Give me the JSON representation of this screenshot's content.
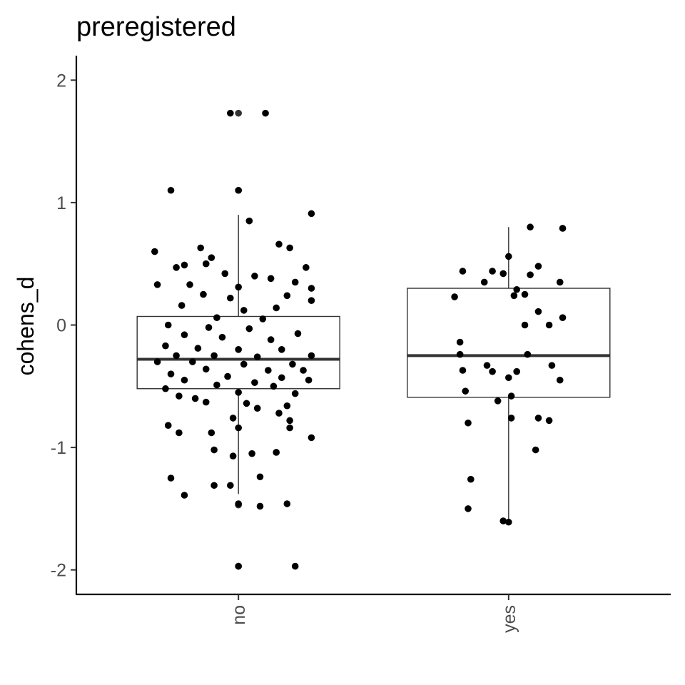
{
  "chart_data": {
    "type": "boxplot",
    "title": "preregistered",
    "xlabel": "",
    "ylabel": "cohens_d",
    "categories": [
      "no",
      "yes"
    ],
    "ylim": [
      -2.2,
      2.2
    ],
    "yticks": [
      -2,
      -1,
      0,
      1,
      2
    ],
    "yticklabels": [
      "-2",
      "-1",
      "0",
      "1",
      "2"
    ],
    "grid": false,
    "legend": "none",
    "colors": {
      "box_fill": "#ffffff",
      "box_stroke": "#333333",
      "median": "#333333",
      "points": "#000000",
      "axis": "#000000"
    },
    "boxes": [
      {
        "category": "no",
        "lower_whisker": -1.38,
        "q1": -0.52,
        "median": -0.28,
        "q3": 0.07,
        "upper_whisker": 0.9
      },
      {
        "category": "yes",
        "lower_whisker": -1.6,
        "q1": -0.59,
        "median": -0.25,
        "q3": 0.3,
        "upper_whisker": 0.8
      }
    ],
    "outliers": [
      {
        "category": "no",
        "y": 1.73
      },
      {
        "category": "no",
        "y": 1.1
      },
      {
        "category": "no",
        "y": -1.47
      },
      {
        "category": "no",
        "y": -1.97
      }
    ],
    "points": [
      {
        "category": "no",
        "x_offset": -0.03,
        "y": 1.73
      },
      {
        "category": "no",
        "x_offset": 0.1,
        "y": 1.73
      },
      {
        "category": "no",
        "x_offset": -0.25,
        "y": 1.1
      },
      {
        "category": "no",
        "x_offset": 0.0,
        "y": 1.1
      },
      {
        "category": "no",
        "x_offset": 0.04,
        "y": 0.85
      },
      {
        "category": "no",
        "x_offset": 0.27,
        "y": 0.91
      },
      {
        "category": "no",
        "x_offset": -0.31,
        "y": 0.6
      },
      {
        "category": "no",
        "x_offset": -0.14,
        "y": 0.63
      },
      {
        "category": "no",
        "x_offset": -0.1,
        "y": 0.55
      },
      {
        "category": "no",
        "x_offset": -0.12,
        "y": 0.5
      },
      {
        "category": "no",
        "x_offset": 0.15,
        "y": 0.66
      },
      {
        "category": "no",
        "x_offset": 0.19,
        "y": 0.63
      },
      {
        "category": "no",
        "x_offset": -0.2,
        "y": 0.49
      },
      {
        "category": "no",
        "x_offset": -0.23,
        "y": 0.47
      },
      {
        "category": "no",
        "x_offset": 0.25,
        "y": 0.47
      },
      {
        "category": "no",
        "x_offset": -0.05,
        "y": 0.42
      },
      {
        "category": "no",
        "x_offset": 0.06,
        "y": 0.4
      },
      {
        "category": "no",
        "x_offset": 0.12,
        "y": 0.38
      },
      {
        "category": "no",
        "x_offset": -0.3,
        "y": 0.33
      },
      {
        "category": "no",
        "x_offset": -0.18,
        "y": 0.33
      },
      {
        "category": "no",
        "x_offset": 0.0,
        "y": 0.31
      },
      {
        "category": "no",
        "x_offset": 0.21,
        "y": 0.35
      },
      {
        "category": "no",
        "x_offset": 0.27,
        "y": 0.3
      },
      {
        "category": "no",
        "x_offset": -0.13,
        "y": 0.25
      },
      {
        "category": "no",
        "x_offset": -0.03,
        "y": 0.22
      },
      {
        "category": "no",
        "x_offset": 0.18,
        "y": 0.24
      },
      {
        "category": "no",
        "x_offset": -0.21,
        "y": 0.16
      },
      {
        "category": "no",
        "x_offset": 0.02,
        "y": 0.12
      },
      {
        "category": "no",
        "x_offset": 0.14,
        "y": 0.14
      },
      {
        "category": "no",
        "x_offset": 0.27,
        "y": 0.2
      },
      {
        "category": "no",
        "x_offset": -0.08,
        "y": 0.06
      },
      {
        "category": "no",
        "x_offset": 0.09,
        "y": 0.05
      },
      {
        "category": "no",
        "x_offset": -0.26,
        "y": 0.0
      },
      {
        "category": "no",
        "x_offset": -0.11,
        "y": -0.02
      },
      {
        "category": "no",
        "x_offset": 0.04,
        "y": -0.03
      },
      {
        "category": "no",
        "x_offset": 0.22,
        "y": -0.07
      },
      {
        "category": "no",
        "x_offset": -0.2,
        "y": -0.08
      },
      {
        "category": "no",
        "x_offset": -0.06,
        "y": -0.1
      },
      {
        "category": "no",
        "x_offset": 0.12,
        "y": -0.12
      },
      {
        "category": "no",
        "x_offset": -0.27,
        "y": -0.17
      },
      {
        "category": "no",
        "x_offset": -0.15,
        "y": -0.19
      },
      {
        "category": "no",
        "x_offset": 0.0,
        "y": -0.2
      },
      {
        "category": "no",
        "x_offset": 0.16,
        "y": -0.2
      },
      {
        "category": "no",
        "x_offset": 0.27,
        "y": -0.25
      },
      {
        "category": "no",
        "x_offset": -0.23,
        "y": -0.25
      },
      {
        "category": "no",
        "x_offset": -0.09,
        "y": -0.25
      },
      {
        "category": "no",
        "x_offset": 0.07,
        "y": -0.26
      },
      {
        "category": "no",
        "x_offset": -0.3,
        "y": -0.3
      },
      {
        "category": "no",
        "x_offset": -0.17,
        "y": -0.3
      },
      {
        "category": "no",
        "x_offset": 0.02,
        "y": -0.32
      },
      {
        "category": "no",
        "x_offset": 0.2,
        "y": -0.32
      },
      {
        "category": "no",
        "x_offset": -0.12,
        "y": -0.36
      },
      {
        "category": "no",
        "x_offset": 0.11,
        "y": -0.37
      },
      {
        "category": "no",
        "x_offset": 0.24,
        "y": -0.37
      },
      {
        "category": "no",
        "x_offset": -0.25,
        "y": -0.4
      },
      {
        "category": "no",
        "x_offset": -0.04,
        "y": -0.42
      },
      {
        "category": "no",
        "x_offset": 0.16,
        "y": -0.43
      },
      {
        "category": "no",
        "x_offset": -0.2,
        "y": -0.45
      },
      {
        "category": "no",
        "x_offset": 0.06,
        "y": -0.47
      },
      {
        "category": "no",
        "x_offset": 0.26,
        "y": -0.45
      },
      {
        "category": "no",
        "x_offset": -0.08,
        "y": -0.49
      },
      {
        "category": "no",
        "x_offset": 0.13,
        "y": -0.5
      },
      {
        "category": "no",
        "x_offset": -0.27,
        "y": -0.52
      },
      {
        "category": "no",
        "x_offset": 0.0,
        "y": -0.55
      },
      {
        "category": "no",
        "x_offset": 0.21,
        "y": -0.56
      },
      {
        "category": "no",
        "x_offset": -0.22,
        "y": -0.58
      },
      {
        "category": "no",
        "x_offset": -0.16,
        "y": -0.6
      },
      {
        "category": "no",
        "x_offset": 0.03,
        "y": -0.64
      },
      {
        "category": "no",
        "x_offset": 0.18,
        "y": -0.66
      },
      {
        "category": "no",
        "x_offset": -0.12,
        "y": -0.63
      },
      {
        "category": "no",
        "x_offset": 0.07,
        "y": -0.68
      },
      {
        "category": "no",
        "x_offset": 0.15,
        "y": -0.72
      },
      {
        "category": "no",
        "x_offset": -0.02,
        "y": -0.76
      },
      {
        "category": "no",
        "x_offset": 0.19,
        "y": -0.78
      },
      {
        "category": "no",
        "x_offset": -0.26,
        "y": -0.82
      },
      {
        "category": "no",
        "x_offset": 0.0,
        "y": -0.84
      },
      {
        "category": "no",
        "x_offset": 0.19,
        "y": -0.84
      },
      {
        "category": "no",
        "x_offset": -0.22,
        "y": -0.88
      },
      {
        "category": "no",
        "x_offset": -0.1,
        "y": -0.88
      },
      {
        "category": "no",
        "x_offset": 0.27,
        "y": -0.92
      },
      {
        "category": "no",
        "x_offset": -0.09,
        "y": -1.02
      },
      {
        "category": "no",
        "x_offset": 0.05,
        "y": -1.05
      },
      {
        "category": "no",
        "x_offset": 0.14,
        "y": -1.04
      },
      {
        "category": "no",
        "x_offset": -0.02,
        "y": -1.07
      },
      {
        "category": "no",
        "x_offset": -0.25,
        "y": -1.25
      },
      {
        "category": "no",
        "x_offset": 0.08,
        "y": -1.24
      },
      {
        "category": "no",
        "x_offset": -0.09,
        "y": -1.31
      },
      {
        "category": "no",
        "x_offset": -0.03,
        "y": -1.31
      },
      {
        "category": "no",
        "x_offset": -0.2,
        "y": -1.39
      },
      {
        "category": "no",
        "x_offset": 0.0,
        "y": -1.46
      },
      {
        "category": "no",
        "x_offset": 0.08,
        "y": -1.48
      },
      {
        "category": "no",
        "x_offset": 0.18,
        "y": -1.46
      },
      {
        "category": "no",
        "x_offset": 0.0,
        "y": -1.97
      },
      {
        "category": "no",
        "x_offset": 0.21,
        "y": -1.97
      },
      {
        "category": "yes",
        "x_offset": 0.08,
        "y": 0.8
      },
      {
        "category": "yes",
        "x_offset": 0.2,
        "y": 0.79
      },
      {
        "category": "yes",
        "x_offset": 0.0,
        "y": 0.56
      },
      {
        "category": "yes",
        "x_offset": 0.11,
        "y": 0.48
      },
      {
        "category": "yes",
        "x_offset": -0.17,
        "y": 0.44
      },
      {
        "category": "yes",
        "x_offset": -0.06,
        "y": 0.44
      },
      {
        "category": "yes",
        "x_offset": -0.02,
        "y": 0.42
      },
      {
        "category": "yes",
        "x_offset": 0.08,
        "y": 0.41
      },
      {
        "category": "yes",
        "x_offset": -0.09,
        "y": 0.35
      },
      {
        "category": "yes",
        "x_offset": 0.19,
        "y": 0.35
      },
      {
        "category": "yes",
        "x_offset": 0.03,
        "y": 0.29
      },
      {
        "category": "yes",
        "x_offset": 0.06,
        "y": 0.25
      },
      {
        "category": "yes",
        "x_offset": -0.2,
        "y": 0.23
      },
      {
        "category": "yes",
        "x_offset": 0.02,
        "y": 0.24
      },
      {
        "category": "yes",
        "x_offset": 0.11,
        "y": 0.11
      },
      {
        "category": "yes",
        "x_offset": 0.2,
        "y": 0.06
      },
      {
        "category": "yes",
        "x_offset": 0.06,
        "y": 0.0
      },
      {
        "category": "yes",
        "x_offset": 0.15,
        "y": 0.0
      },
      {
        "category": "yes",
        "x_offset": -0.18,
        "y": -0.14
      },
      {
        "category": "yes",
        "x_offset": -0.18,
        "y": -0.24
      },
      {
        "category": "yes",
        "x_offset": 0.07,
        "y": -0.24
      },
      {
        "category": "yes",
        "x_offset": -0.08,
        "y": -0.33
      },
      {
        "category": "yes",
        "x_offset": 0.16,
        "y": -0.33
      },
      {
        "category": "yes",
        "x_offset": -0.17,
        "y": -0.37
      },
      {
        "category": "yes",
        "x_offset": -0.06,
        "y": -0.38
      },
      {
        "category": "yes",
        "x_offset": 0.03,
        "y": -0.38
      },
      {
        "category": "yes",
        "x_offset": 0.0,
        "y": -0.43
      },
      {
        "category": "yes",
        "x_offset": 0.19,
        "y": -0.45
      },
      {
        "category": "yes",
        "x_offset": -0.16,
        "y": -0.54
      },
      {
        "category": "yes",
        "x_offset": 0.01,
        "y": -0.58
      },
      {
        "category": "yes",
        "x_offset": -0.04,
        "y": -0.62
      },
      {
        "category": "yes",
        "x_offset": 0.01,
        "y": -0.76
      },
      {
        "category": "yes",
        "x_offset": 0.11,
        "y": -0.76
      },
      {
        "category": "yes",
        "x_offset": 0.15,
        "y": -0.78
      },
      {
        "category": "yes",
        "x_offset": -0.15,
        "y": -0.8
      },
      {
        "category": "yes",
        "x_offset": 0.1,
        "y": -1.02
      },
      {
        "category": "yes",
        "x_offset": -0.14,
        "y": -1.26
      },
      {
        "category": "yes",
        "x_offset": -0.15,
        "y": -1.5
      },
      {
        "category": "yes",
        "x_offset": -0.02,
        "y": -1.6
      },
      {
        "category": "yes",
        "x_offset": 0.0,
        "y": -1.61
      }
    ]
  }
}
